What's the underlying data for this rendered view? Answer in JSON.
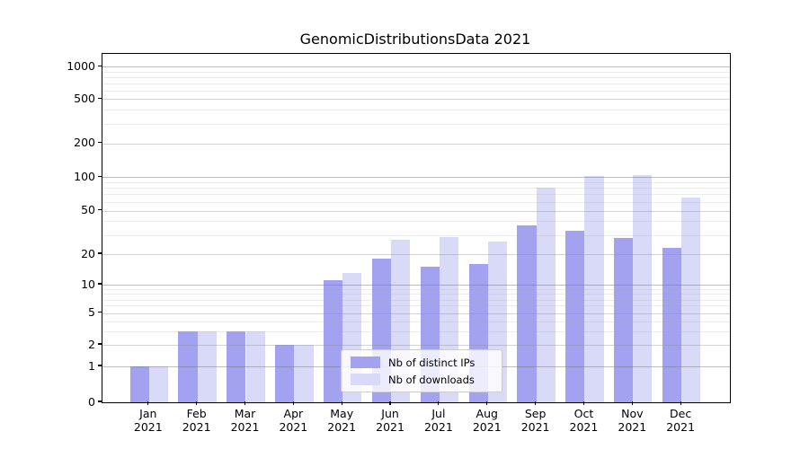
{
  "title": "GenomicDistributionsData 2021",
  "chart_data": {
    "type": "bar",
    "title": "GenomicDistributionsData 2021",
    "categories": [
      {
        "month": "Jan",
        "year": "2021"
      },
      {
        "month": "Feb",
        "year": "2021"
      },
      {
        "month": "Mar",
        "year": "2021"
      },
      {
        "month": "Apr",
        "year": "2021"
      },
      {
        "month": "May",
        "year": "2021"
      },
      {
        "month": "Jun",
        "year": "2021"
      },
      {
        "month": "Jul",
        "year": "2021"
      },
      {
        "month": "Aug",
        "year": "2021"
      },
      {
        "month": "Sep",
        "year": "2021"
      },
      {
        "month": "Oct",
        "year": "2021"
      },
      {
        "month": "Nov",
        "year": "2021"
      },
      {
        "month": "Dec",
        "year": "2021"
      }
    ],
    "series": [
      {
        "name": "Nb of distinct IPs",
        "color": "#a2a2f0",
        "values": [
          1,
          3,
          3,
          2,
          11,
          18,
          15,
          16,
          37,
          33,
          28,
          23
        ]
      },
      {
        "name": "Nb of downloads",
        "color": "#d9d9f8",
        "values": [
          1,
          3,
          3,
          2,
          13,
          27,
          29,
          26,
          80,
          102,
          104,
          65
        ]
      }
    ],
    "xlabel": "",
    "ylabel": "",
    "yscale": "log-like (log1p), linear below 1",
    "y_ticks": [
      0,
      1,
      2,
      5,
      10,
      20,
      50,
      100,
      200,
      500,
      1000
    ],
    "ylim": [
      0,
      1600
    ],
    "grid": "horizontal major and minor gridlines",
    "legend_position": "lower center-left inside plot"
  },
  "legend": {
    "items": [
      {
        "label": "Nb of distinct IPs",
        "color": "#a2a2f0"
      },
      {
        "label": "Nb of downloads",
        "color": "#d9d9f8"
      }
    ]
  }
}
